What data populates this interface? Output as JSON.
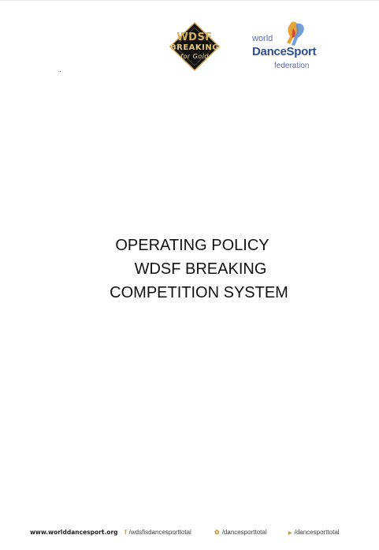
{
  "logos": {
    "breaking": {
      "name": "WDSF Breaking logo",
      "line1": "WDSF",
      "line2": "BREAKING",
      "signature": "for Gold",
      "colors": {
        "background": "#111111",
        "gold": "#d8b25c"
      }
    },
    "federation": {
      "line1": "world",
      "line2": "DanceSport",
      "line3": "federation",
      "colors": {
        "blue": "#2f4f8f",
        "lightblue": "#5b6fa6",
        "orange": "#e8a23a",
        "red": "#d9443c"
      }
    }
  },
  "title": {
    "line1": "OPERATING POLICY",
    "line2": "WDSF BREAKING",
    "line3": "COMPETITION SYSTEM"
  },
  "footer": {
    "website": "www.worlddancesport.org",
    "facebook": "/wdsfisdancesporttotal",
    "twitter": "/dancesporttotal",
    "youtube": "/dancesporttotal",
    "icons": {
      "facebook": "facebook-icon",
      "twitter": "twitter-icon",
      "youtube": "youtube-icon"
    }
  }
}
